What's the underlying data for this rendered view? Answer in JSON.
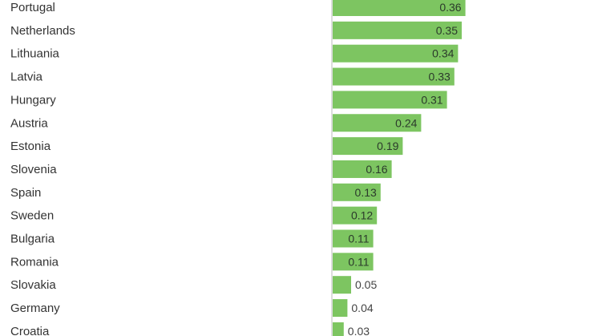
{
  "chart_data": {
    "type": "bar",
    "orientation": "horizontal",
    "categories": [
      "Portugal",
      "Netherlands",
      "Lithuania",
      "Latvia",
      "Hungary",
      "Austria",
      "Estonia",
      "Slovenia",
      "Spain",
      "Sweden",
      "Bulgaria",
      "Romania",
      "Slovakia",
      "Germany",
      "Croatia"
    ],
    "values": [
      0.36,
      0.35,
      0.34,
      0.33,
      0.31,
      0.24,
      0.19,
      0.16,
      0.13,
      0.12,
      0.11,
      0.11,
      0.05,
      0.04,
      0.03
    ],
    "value_labels": [
      "0.36",
      "0.35",
      "0.34",
      "0.33",
      "0.31",
      "0.24",
      "0.19",
      "0.16",
      "0.13",
      "0.12",
      "0.11",
      "0.11",
      "0.05",
      "0.04",
      "0.03"
    ],
    "bar_color": "#7dc561",
    "axis_color": "#bbbbbb",
    "xlim": [
      0,
      0.36
    ],
    "grid": false,
    "legend": "none"
  }
}
